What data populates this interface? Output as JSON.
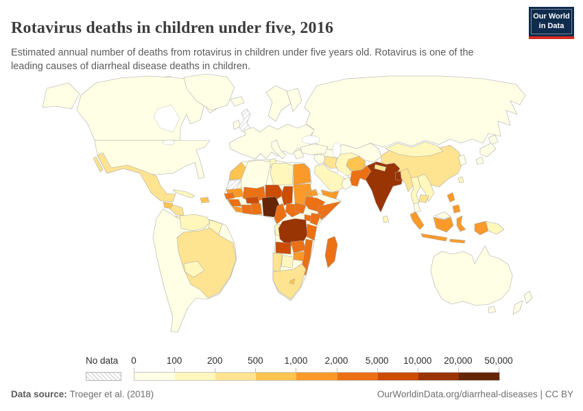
{
  "header": {
    "title": "Rotavirus deaths in children under five, 2016",
    "subtitle": "Estimated annual number of deaths from rotavirus in children under five years old. Rotavirus is one of the leading causes of diarrheal disease deaths in children.",
    "logo": {
      "line1": "Our World",
      "line2": "in Data",
      "bg_color": "#0f2b4d",
      "accent_color": "#d42b21"
    }
  },
  "legend": {
    "no_data_label": "No data",
    "tick_labels": [
      "0",
      "100",
      "200",
      "500",
      "1,000",
      "2,000",
      "5,000",
      "10,000",
      "20,000",
      "50,000"
    ],
    "colors": [
      "#FFFFE5",
      "#FFF7BC",
      "#FEE391",
      "#FEC44F",
      "#FB9A29",
      "#EC7014",
      "#CC4C02",
      "#993404",
      "#662506"
    ]
  },
  "footer": {
    "source_label": "Data source:",
    "source_value": "Troeger et al. (2018)",
    "credit": "OurWorldinData.org/diarrheal-diseases | CC BY"
  },
  "chart_data": {
    "type": "choropleth-map",
    "title": "Rotavirus deaths in children under five, 2016",
    "unit": "deaths per year",
    "year": "2016",
    "bin_edges": [
      0,
      100,
      200,
      500,
      1000,
      2000,
      5000,
      10000,
      20000,
      50000
    ],
    "no_data_style": "diagonal-hatch",
    "regions": [
      {
        "id": "canada",
        "name": "Canada",
        "bin": 0
      },
      {
        "id": "usa",
        "name": "United States",
        "bin": 0
      },
      {
        "id": "greenland",
        "name": "Greenland",
        "bin": 0
      },
      {
        "id": "mexico",
        "name": "Mexico",
        "bin": 2
      },
      {
        "id": "guatemala",
        "name": "Guatemala",
        "bin": 3
      },
      {
        "id": "honduras-nicaragua",
        "name": "Honduras & Nicaragua",
        "bin": 2
      },
      {
        "id": "costa-rica-panama",
        "name": "Costa Rica & Panama",
        "bin": 1
      },
      {
        "id": "cuba",
        "name": "Cuba",
        "bin": 1
      },
      {
        "id": "hispaniola",
        "name": "Haiti & Dominican Republic",
        "bin": 3
      },
      {
        "id": "south-america-other",
        "name": "Colombia, Peru, Argentina, Chile & others",
        "bin": 0
      },
      {
        "id": "venezuela",
        "name": "Venezuela",
        "bin": 1
      },
      {
        "id": "guyanas",
        "name": "Guyana & Suriname",
        "bin": 1
      },
      {
        "id": "brazil",
        "name": "Brazil",
        "bin": 2
      },
      {
        "id": "bolivia",
        "name": "Bolivia",
        "bin": 1
      },
      {
        "id": "iceland",
        "name": "Iceland",
        "bin": 0
      },
      {
        "id": "ireland",
        "name": "Ireland",
        "bin": 0
      },
      {
        "id": "uk",
        "name": "United Kingdom",
        "bin": null
      },
      {
        "id": "europe",
        "name": "Europe",
        "bin": 0
      },
      {
        "id": "russia",
        "name": "Russia",
        "bin": 0
      },
      {
        "id": "kazakhstan",
        "name": "Kazakhstan",
        "bin": 0
      },
      {
        "id": "uzbek-turkmen",
        "name": "Uzbekistan & Turkmenistan",
        "bin": 1
      },
      {
        "id": "tajikistan",
        "name": "Tajikistan & Kyrgyzstan",
        "bin": 3
      },
      {
        "id": "mongolia",
        "name": "Mongolia",
        "bin": 1
      },
      {
        "id": "china",
        "name": "China",
        "bin": 2
      },
      {
        "id": "korea",
        "name": "South Korea",
        "bin": 0
      },
      {
        "id": "japan",
        "name": "Japan",
        "bin": 0
      },
      {
        "id": "taiwan",
        "name": "Taiwan",
        "bin": 1
      },
      {
        "id": "turkey",
        "name": "Turkey",
        "bin": 0
      },
      {
        "id": "syria-levant",
        "name": "Levant",
        "bin": 0
      },
      {
        "id": "iraq",
        "name": "Iraq",
        "bin": 2
      },
      {
        "id": "iran",
        "name": "Iran",
        "bin": 1
      },
      {
        "id": "afghanistan",
        "name": "Afghanistan",
        "bin": 3
      },
      {
        "id": "pakistan",
        "name": "Pakistan",
        "bin": 5
      },
      {
        "id": "saudi",
        "name": "Saudi Arabia",
        "bin": 1
      },
      {
        "id": "yemen",
        "name": "Yemen",
        "bin": 4
      },
      {
        "id": "oman",
        "name": "Oman",
        "bin": 0
      },
      {
        "id": "india",
        "name": "India",
        "bin": 7
      },
      {
        "id": "nepal",
        "name": "Nepal",
        "bin": 2
      },
      {
        "id": "bangladesh",
        "name": "Bangladesh",
        "bin": 7
      },
      {
        "id": "sri-lanka",
        "name": "Sri Lanka",
        "bin": 1
      },
      {
        "id": "myanmar",
        "name": "Myanmar",
        "bin": 2
      },
      {
        "id": "thailand",
        "name": "Thailand",
        "bin": 1
      },
      {
        "id": "laos-vietnam",
        "name": "Laos & Vietnam",
        "bin": 1
      },
      {
        "id": "cambodia",
        "name": "Cambodia",
        "bin": 2
      },
      {
        "id": "malaysia",
        "name": "Malaysia",
        "bin": 0
      },
      {
        "id": "indonesia",
        "name": "Indonesia",
        "bin": 4
      },
      {
        "id": "philippines",
        "name": "Philippines",
        "bin": 4
      },
      {
        "id": "png",
        "name": "Papua New Guinea",
        "bin": 1
      },
      {
        "id": "australia",
        "name": "Australia",
        "bin": 0
      },
      {
        "id": "new-zealand",
        "name": "New Zealand",
        "bin": 0
      },
      {
        "id": "africa-other",
        "name": "Other Africa",
        "bin": 0
      },
      {
        "id": "morocco",
        "name": "Morocco",
        "bin": 3
      },
      {
        "id": "western-sahara",
        "name": "Western Sahara",
        "bin": null
      },
      {
        "id": "algeria",
        "name": "Algeria",
        "bin": 0
      },
      {
        "id": "tunisia",
        "name": "Tunisia",
        "bin": 1
      },
      {
        "id": "libya",
        "name": "Libya",
        "bin": 1
      },
      {
        "id": "egypt",
        "name": "Egypt",
        "bin": 4
      },
      {
        "id": "mauritania",
        "name": "Mauritania",
        "bin": 4
      },
      {
        "id": "mali",
        "name": "Mali",
        "bin": 5
      },
      {
        "id": "niger",
        "name": "Niger",
        "bin": 6
      },
      {
        "id": "chad",
        "name": "Chad",
        "bin": 6
      },
      {
        "id": "sudan",
        "name": "Sudan",
        "bin": 4
      },
      {
        "id": "senegal",
        "name": "Senegal",
        "bin": 5
      },
      {
        "id": "guinea",
        "name": "Guinea",
        "bin": 5
      },
      {
        "id": "sierra-leone-liberia",
        "name": "Sierra Leone & Liberia",
        "bin": 4
      },
      {
        "id": "ivory-coast",
        "name": "Côte d'Ivoire",
        "bin": 5
      },
      {
        "id": "ghana",
        "name": "Ghana, Togo & Benin",
        "bin": 5
      },
      {
        "id": "burkina",
        "name": "Burkina Faso",
        "bin": 6
      },
      {
        "id": "nigeria",
        "name": "Nigeria",
        "bin": 8
      },
      {
        "id": "cameroon",
        "name": "Cameroon",
        "bin": 5
      },
      {
        "id": "car",
        "name": "Central African Republic",
        "bin": 5
      },
      {
        "id": "south-sudan",
        "name": "South Sudan",
        "bin": 5
      },
      {
        "id": "eritrea",
        "name": "Eritrea",
        "bin": 4
      },
      {
        "id": "ethiopia",
        "name": "Ethiopia",
        "bin": 5
      },
      {
        "id": "somalia",
        "name": "Somalia",
        "bin": 5
      },
      {
        "id": "uganda",
        "name": "Uganda",
        "bin": 5
      },
      {
        "id": "kenya",
        "name": "Kenya",
        "bin": 5
      },
      {
        "id": "tanzania",
        "name": "Tanzania",
        "bin": 5
      },
      {
        "id": "gabon-congo",
        "name": "Gabon & Congo",
        "bin": 1
      },
      {
        "id": "drc",
        "name": "Democratic Republic of Congo",
        "bin": 7
      },
      {
        "id": "angola",
        "name": "Angola",
        "bin": 6
      },
      {
        "id": "zambia",
        "name": "Zambia",
        "bin": 5
      },
      {
        "id": "mozambique",
        "name": "Mozambique",
        "bin": 5
      },
      {
        "id": "zimbabwe",
        "name": "Zimbabwe",
        "bin": 4
      },
      {
        "id": "botswana",
        "name": "Botswana",
        "bin": 1
      },
      {
        "id": "namibia",
        "name": "Namibia",
        "bin": 2
      },
      {
        "id": "south-africa",
        "name": "South Africa",
        "bin": 2
      },
      {
        "id": "lesotho",
        "name": "Lesotho",
        "bin": 3
      },
      {
        "id": "madagascar",
        "name": "Madagascar",
        "bin": 5
      }
    ]
  }
}
